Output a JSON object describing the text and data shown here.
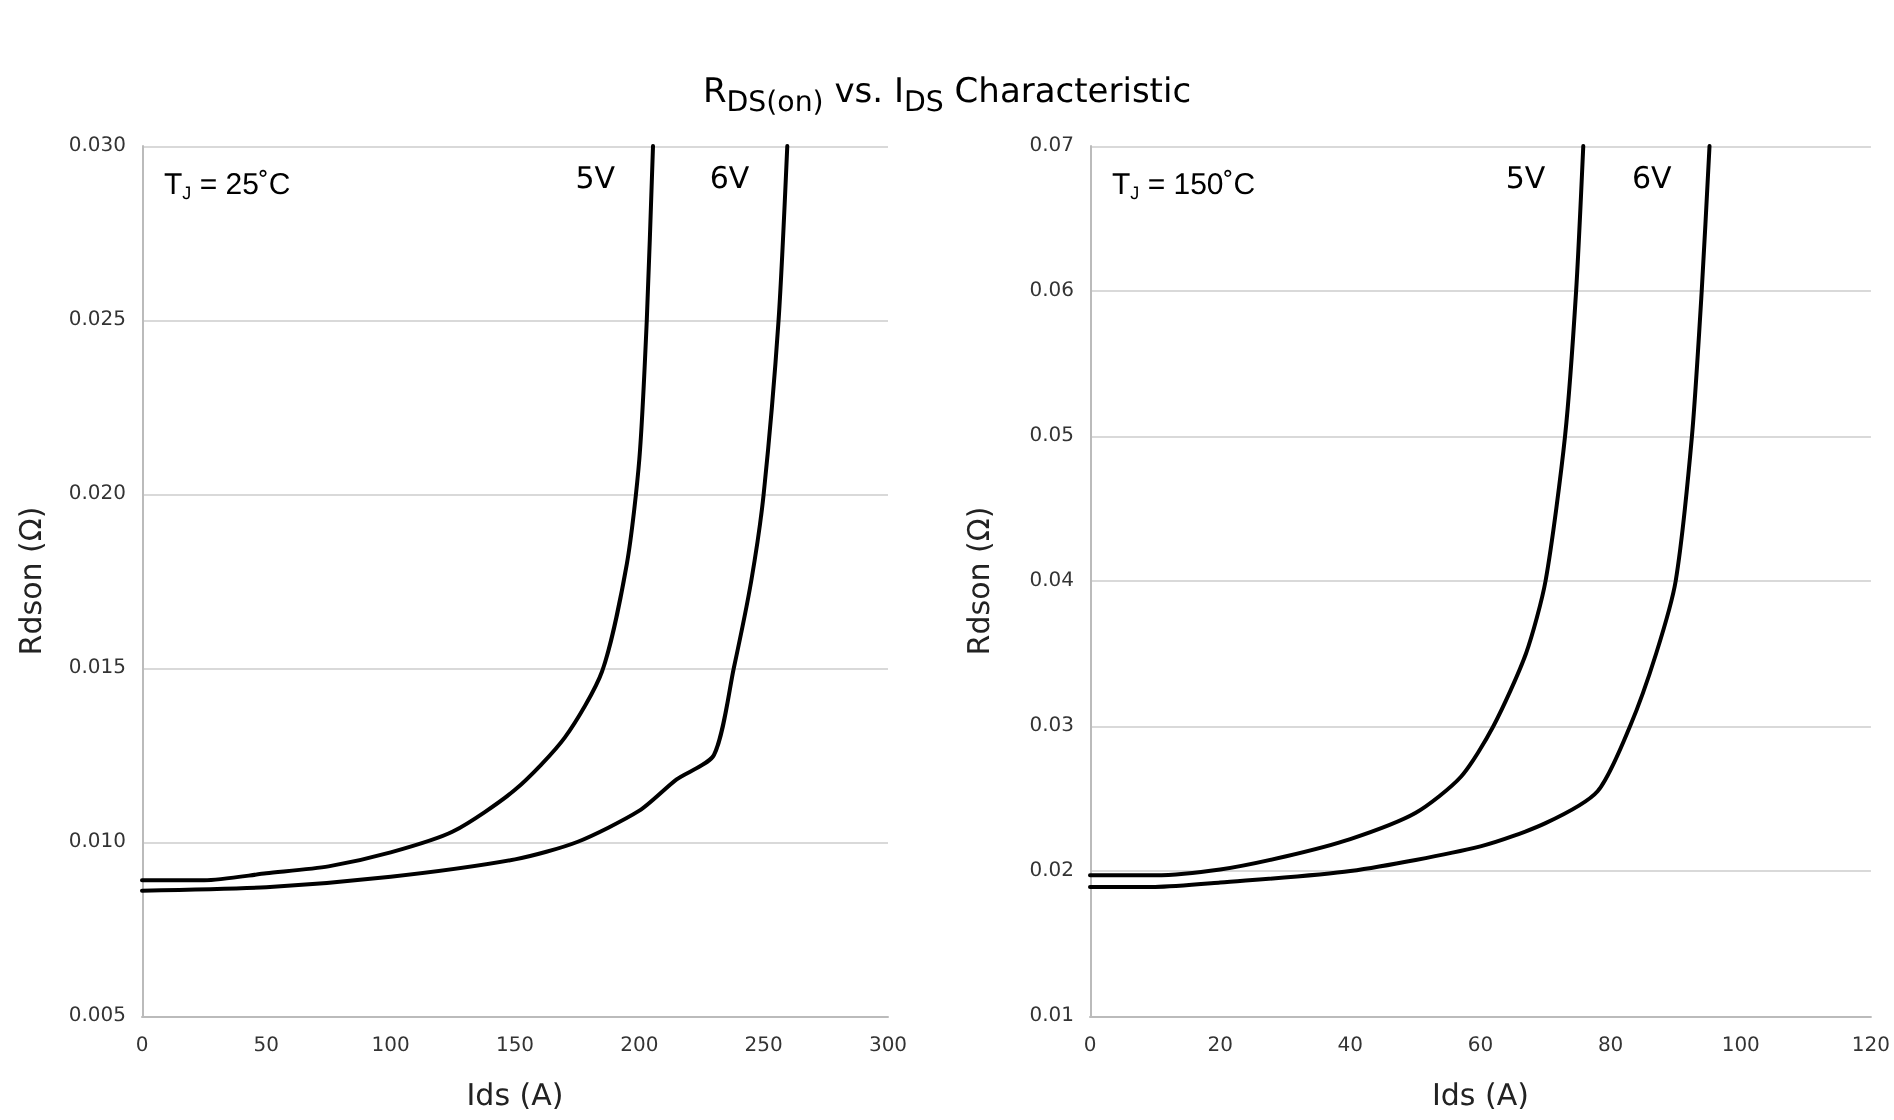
{
  "chart_data": [
    {
      "type": "line",
      "title": "R$_{DS(on)}$ vs. I$_{DS}$ Characteristic",
      "xlabel": "Ids (A)",
      "ylabel": "Rdson (Ω)",
      "annotations": [
        "T$_{J}$ = 25˚C"
      ],
      "xlim": [
        0,
        300
      ],
      "xticks": [
        0,
        50,
        100,
        150,
        200,
        250,
        300
      ],
      "ylim": [
        0.005,
        0.03
      ],
      "yticks": [
        {
          "value": 0.005,
          "label": "0.005"
        },
        {
          "value": 0.01,
          "label": "0.010"
        },
        {
          "value": 0.015,
          "label": "0.015"
        },
        {
          "value": 0.02,
          "label": "0.020"
        },
        {
          "value": 0.025,
          "label": "0.025"
        },
        {
          "value": 0.03,
          "label": "0.030"
        }
      ],
      "grid": "y",
      "legend": false,
      "marker": "none",
      "line_style": "solid",
      "series": [
        {
          "name": "5V",
          "color": "#000000",
          "x": [
            0,
            25,
            50,
            75,
            100,
            125,
            150,
            170,
            185,
            195,
            200,
            203,
            205.5
          ],
          "values": [
            0.0089,
            0.0089,
            0.0091,
            0.0093,
            0.0097,
            0.0103,
            0.0115,
            0.013,
            0.0149,
            0.018,
            0.021,
            0.025,
            0.03
          ]
        },
        {
          "name": "6V",
          "color": "#000000",
          "x": [
            0,
            50,
            100,
            150,
            175,
            200,
            215,
            230,
            238,
            245,
            250,
            256,
            259.5
          ],
          "values": [
            0.0086,
            0.0087,
            0.009,
            0.0095,
            0.01,
            0.0109,
            0.0118,
            0.0125,
            0.015,
            0.0175,
            0.02,
            0.025,
            0.03
          ]
        }
      ]
    },
    {
      "type": "line",
      "xlabel": "Ids (A)",
      "ylabel": "Rdson (Ω)",
      "annotations": [
        "T$_{J}$ = 150˚C"
      ],
      "xlim": [
        0,
        120
      ],
      "xticks": [
        0,
        20,
        40,
        60,
        80,
        100,
        120
      ],
      "ylim": [
        0.01,
        0.07
      ],
      "yticks": [
        0.01,
        0.02,
        0.03,
        0.04,
        0.05,
        0.06,
        0.07
      ],
      "grid": "y",
      "legend": false,
      "marker": "none",
      "line_style": "solid",
      "series": [
        {
          "name": "5V",
          "color": "#000000",
          "x": [
            0,
            10,
            20,
            30,
            40,
            50,
            57,
            62,
            67,
            70,
            73,
            74.7,
            75.8
          ],
          "values": [
            0.0197,
            0.0197,
            0.0201,
            0.021,
            0.0222,
            0.024,
            0.0265,
            0.03,
            0.035,
            0.04,
            0.05,
            0.06,
            0.07
          ]
        },
        {
          "name": "6V",
          "color": "#000000",
          "x": [
            0,
            10,
            20,
            40,
            60,
            70,
            78,
            83,
            87,
            90,
            92.5,
            94,
            95.2
          ],
          "values": [
            0.0189,
            0.0189,
            0.0192,
            0.02,
            0.0217,
            0.0233,
            0.0255,
            0.03,
            0.035,
            0.04,
            0.05,
            0.06,
            0.07
          ]
        }
      ]
    }
  ]
}
